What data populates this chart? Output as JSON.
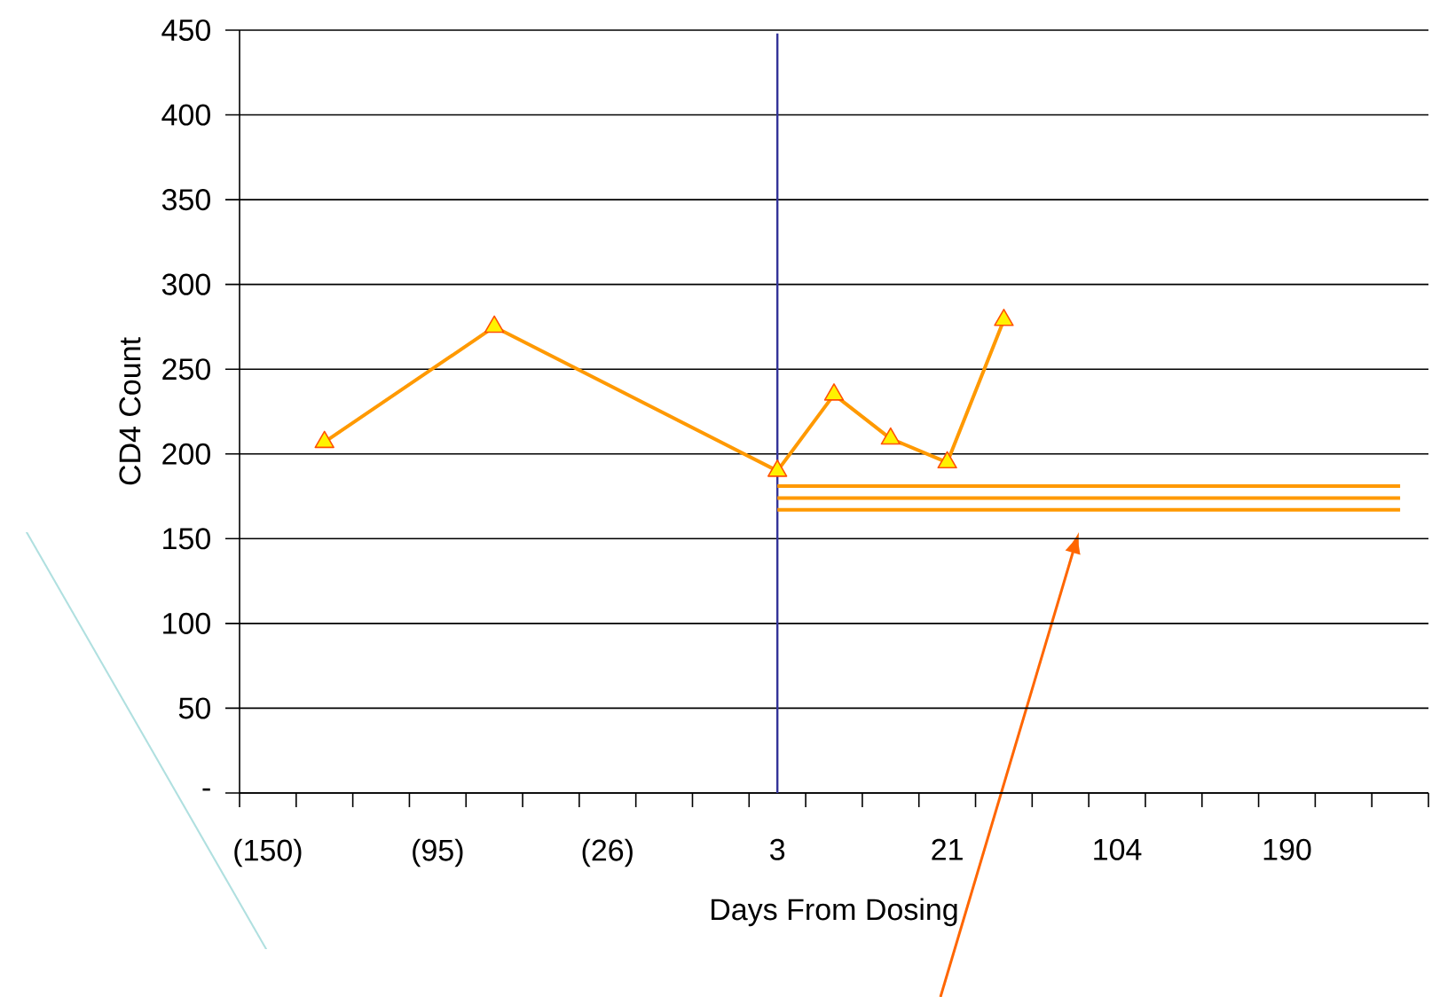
{
  "chart_data": {
    "type": "line",
    "xlabel": "Days From Dosing",
    "ylabel": "CD4 Count",
    "categories": [
      "(150)",
      null,
      null,
      "(95)",
      null,
      null,
      "(26)",
      null,
      null,
      "3",
      null,
      null,
      "21",
      null,
      null,
      "104",
      null,
      null,
      "190",
      null,
      null
    ],
    "series": [
      {
        "color": "#ff9900",
        "marker": "triangle",
        "values": [
          null,
          207,
          null,
          null,
          275,
          null,
          null,
          null,
          null,
          190,
          235,
          209,
          195,
          279,
          null,
          null,
          null,
          null,
          null,
          null,
          null
        ]
      },
      {
        "color": "#ff9900",
        "marker": "none",
        "values": [
          null,
          null,
          null,
          null,
          null,
          null,
          null,
          null,
          null,
          181,
          181,
          181,
          181,
          181,
          181,
          181,
          181,
          181,
          181,
          181,
          181
        ]
      },
      {
        "color": "#ff9900",
        "marker": "none",
        "values": [
          null,
          null,
          null,
          null,
          null,
          null,
          null,
          null,
          null,
          174,
          174,
          174,
          174,
          174,
          174,
          174,
          174,
          174,
          174,
          174,
          174
        ]
      },
      {
        "color": "#ff9900",
        "marker": "none",
        "values": [
          null,
          null,
          null,
          null,
          null,
          null,
          null,
          null,
          null,
          167,
          167,
          167,
          167,
          167,
          167,
          167,
          167,
          167,
          167,
          167,
          167
        ]
      }
    ],
    "ylim": [
      0,
      450
    ],
    "yticks": [
      {
        "value": 0,
        "label": "-"
      },
      50,
      100,
      150,
      200,
      250,
      300,
      350,
      400,
      450
    ],
    "grid": "y",
    "ref_lines": [
      {
        "axis": "x",
        "value": "3",
        "color": "#333399"
      }
    ]
  }
}
